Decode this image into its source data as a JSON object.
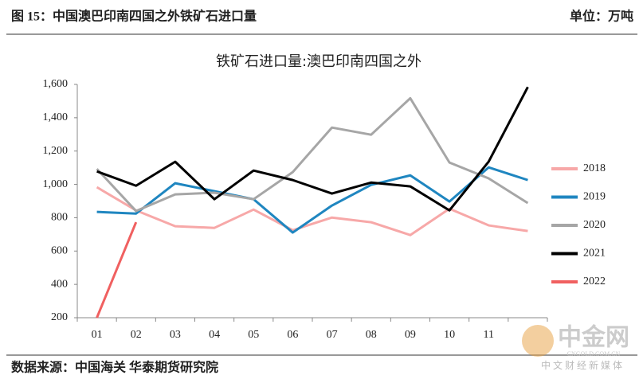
{
  "header": {
    "title": "图 15：中国澳巴印南四国之外铁矿石进口量",
    "unit": "单位：万吨"
  },
  "chart_data": {
    "type": "line",
    "title": "铁矿石进口量:澳巴印南四国之外",
    "categories": [
      "01",
      "02",
      "03",
      "04",
      "05",
      "06",
      "07",
      "08",
      "09",
      "10",
      "11",
      null
    ],
    "series": [
      {
        "name": "2018",
        "color": "#f7a8a8",
        "values": [
          983,
          844,
          749,
          739,
          849,
          725,
          801,
          773,
          696,
          854,
          754,
          720
        ]
      },
      {
        "name": "2019",
        "color": "#1f86c0",
        "values": [
          835,
          825,
          1007,
          959,
          911,
          711,
          873,
          997,
          1054,
          897,
          1102,
          1026
        ]
      },
      {
        "name": "2020",
        "color": "#a6a6a6",
        "values": [
          1093,
          840,
          940,
          950,
          911,
          1074,
          1341,
          1298,
          1517,
          1131,
          1036,
          888
        ]
      },
      {
        "name": "2021",
        "color": "#000000",
        "values": [
          1078,
          992,
          1136,
          911,
          1083,
          1026,
          945,
          1011,
          988,
          844,
          1136,
          1584
        ]
      },
      {
        "name": "2022",
        "color": "#f06060",
        "values": [
          200,
          773,
          null,
          null,
          null,
          null,
          null,
          null,
          null,
          null,
          null,
          null
        ]
      }
    ],
    "ylim": [
      200,
      1600
    ],
    "yticks": [
      200,
      400,
      600,
      800,
      {
        "value": 1000,
        "label": "1,000"
      },
      {
        "value": 1200,
        "label": "1,200"
      },
      {
        "value": 1400,
        "label": "1,400"
      },
      {
        "value": 1600,
        "label": "1,600"
      }
    ],
    "grid": false,
    "legend": "right"
  },
  "footer": {
    "source": "数据来源：中国海关 华泰期货研究院"
  },
  "watermark": {
    "brand": "中金网",
    "site": "CNGOLD.COM.CN",
    "slogan": "中 文 财 经 新 媒 体"
  }
}
